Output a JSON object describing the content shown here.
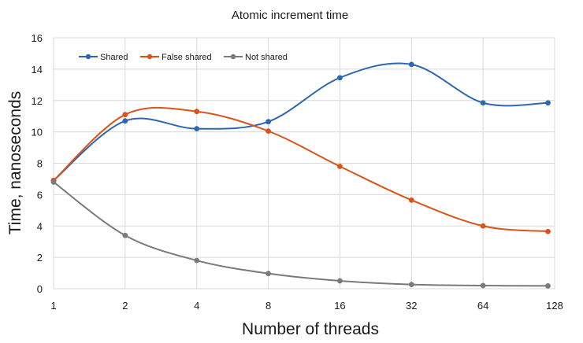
{
  "chart_data": {
    "type": "line",
    "title": "Atomic increment time",
    "xlabel": "Number of threads",
    "ylabel": "Time, nanoseconds",
    "x": [
      1,
      2,
      4,
      8,
      16,
      32,
      64,
      120
    ],
    "xticks": [
      1,
      2,
      4,
      8,
      16,
      32,
      64,
      128
    ],
    "x_scale": "log2",
    "ylim": [
      0,
      16
    ],
    "yticks": [
      0,
      2,
      4,
      6,
      8,
      10,
      12,
      14,
      16
    ],
    "grid": true,
    "legend_position": "top-left",
    "series": [
      {
        "name": "Shared",
        "color": "#2e66b0",
        "values": [
          6.9,
          10.7,
          10.2,
          10.65,
          13.45,
          14.3,
          11.85,
          11.85
        ]
      },
      {
        "name": "False shared",
        "color": "#d9541a",
        "values": [
          6.9,
          11.1,
          11.3,
          10.05,
          7.8,
          5.65,
          4.0,
          3.65
        ]
      },
      {
        "name": "Not shared",
        "color": "#7a7a7a",
        "values": [
          6.8,
          3.4,
          1.8,
          0.97,
          0.5,
          0.27,
          0.2,
          0.18
        ]
      }
    ]
  }
}
